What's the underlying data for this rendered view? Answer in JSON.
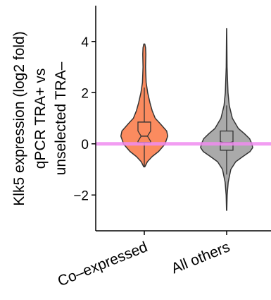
{
  "chart_data": {
    "type": "violin",
    "title": "",
    "ylabel_lines": [
      "Klk5 expression (log2 fold)",
      "qPCR TRA+ vs",
      "unselected TRA–"
    ],
    "xlabel": "",
    "categories": [
      "Co–expressed",
      "All others"
    ],
    "ylim": [
      -3.4,
      5.4
    ],
    "yticks": [
      -2,
      0,
      2,
      4
    ],
    "ytick_labels": [
      "−2",
      "0",
      "2",
      "4"
    ],
    "reference_line": {
      "y": 0,
      "color": "#f08cf0"
    },
    "grid": false,
    "legend": "none",
    "series": [
      {
        "category": "Co–expressed",
        "color": "#fb8b5f",
        "min": -0.9,
        "max": 3.9,
        "q1": 0.05,
        "median": 0.3,
        "q3": 0.85,
        "notch": [
          0.1,
          0.5
        ],
        "whisker_low": -0.9,
        "whisker_high": 2.2,
        "density": [
          [
            -0.9,
            0.02
          ],
          [
            -0.7,
            0.12
          ],
          [
            -0.5,
            0.3
          ],
          [
            -0.3,
            0.55
          ],
          [
            -0.1,
            0.72
          ],
          [
            0.0,
            0.8
          ],
          [
            0.1,
            0.83
          ],
          [
            0.3,
            0.9
          ],
          [
            0.5,
            0.86
          ],
          [
            0.8,
            0.6
          ],
          [
            1.0,
            0.42
          ],
          [
            1.3,
            0.3
          ],
          [
            1.6,
            0.22
          ],
          [
            2.0,
            0.13
          ],
          [
            2.4,
            0.07
          ],
          [
            3.0,
            0.05
          ],
          [
            3.5,
            0.06
          ],
          [
            3.75,
            0.05
          ],
          [
            3.9,
            0.02
          ]
        ]
      },
      {
        "category": "All others",
        "color": "#aaaaaa",
        "min": -2.6,
        "max": 4.5,
        "q1": -0.25,
        "median": 0.05,
        "q3": 0.5,
        "notch": [
          0.02,
          0.08
        ],
        "whisker_low": -1.2,
        "whisker_high": 1.5,
        "density": [
          [
            -2.6,
            0.005
          ],
          [
            -2.0,
            0.02
          ],
          [
            -1.5,
            0.06
          ],
          [
            -1.0,
            0.16
          ],
          [
            -0.7,
            0.35
          ],
          [
            -0.5,
            0.62
          ],
          [
            -0.3,
            0.9
          ],
          [
            -0.15,
            1.0
          ],
          [
            0.0,
            0.97
          ],
          [
            0.2,
            0.88
          ],
          [
            0.4,
            0.68
          ],
          [
            0.6,
            0.45
          ],
          [
            1.0,
            0.22
          ],
          [
            1.5,
            0.1
          ],
          [
            2.0,
            0.05
          ],
          [
            3.0,
            0.015
          ],
          [
            4.0,
            0.007
          ],
          [
            4.5,
            0.003
          ]
        ]
      }
    ]
  }
}
